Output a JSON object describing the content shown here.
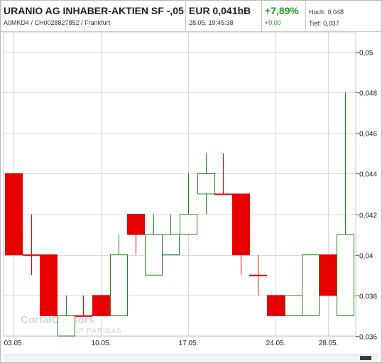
{
  "quote": {
    "name": "URANIO AG INHABER-AKTIEN SF -,05",
    "ids": "A0MKD4 / CH0028827852 / Frankfurt",
    "price": "EUR 0,041bB",
    "datetime": "28.05. 19:45:38",
    "change_pct": "+7,89%",
    "change_abs": "+0,00",
    "high_label": "Hoch:",
    "high_value": "0,048",
    "low_label": "Tief:",
    "low_value": "0,037"
  },
  "watermark": {
    "line1": "CortalConsors",
    "line2": "BNP PARIBAS"
  },
  "colors": {
    "up": "#1a8a1a",
    "down": "#e60000",
    "grid": "#d9d9d9",
    "change_positive": "#1a9a1a"
  },
  "chart_data": {
    "type": "candlestick",
    "title": "",
    "xlabel": "",
    "ylabel": "",
    "ylim": [
      0.036,
      0.05
    ],
    "ytick_values": [
      0.036,
      0.038,
      0.04,
      0.042,
      0.044,
      0.046,
      0.048,
      0.05
    ],
    "yticks": [
      "0,036",
      "0,038",
      "0,04",
      "0,042",
      "0,044",
      "0,046",
      "0,048",
      "0,05"
    ],
    "grid": true,
    "xticks": [
      {
        "index": 0,
        "label": "03.05."
      },
      {
        "index": 5,
        "label": "10.05."
      },
      {
        "index": 10,
        "label": "17.05."
      },
      {
        "index": 15,
        "label": "24.05."
      },
      {
        "index": 18,
        "label": "28.05."
      }
    ],
    "candles": [
      {
        "o": 0.044,
        "h": 0.044,
        "l": 0.04,
        "c": 0.04
      },
      {
        "o": 0.04,
        "h": 0.042,
        "l": 0.039,
        "c": 0.04
      },
      {
        "o": 0.04,
        "h": 0.04,
        "l": 0.037,
        "c": 0.037
      },
      {
        "o": 0.036,
        "h": 0.038,
        "l": 0.036,
        "c": 0.037
      },
      {
        "o": 0.037,
        "h": 0.038,
        "l": 0.037,
        "c": 0.037
      },
      {
        "o": 0.038,
        "h": 0.038,
        "l": 0.037,
        "c": 0.037
      },
      {
        "o": 0.037,
        "h": 0.041,
        "l": 0.037,
        "c": 0.04
      },
      {
        "o": 0.042,
        "h": 0.042,
        "l": 0.04,
        "c": 0.041
      },
      {
        "o": 0.039,
        "h": 0.042,
        "l": 0.039,
        "c": 0.041
      },
      {
        "o": 0.04,
        "h": 0.042,
        "l": 0.04,
        "c": 0.041
      },
      {
        "o": 0.041,
        "h": 0.044,
        "l": 0.041,
        "c": 0.042
      },
      {
        "o": 0.043,
        "h": 0.045,
        "l": 0.042,
        "c": 0.044
      },
      {
        "o": 0.043,
        "h": 0.045,
        "l": 0.043,
        "c": 0.043
      },
      {
        "o": 0.043,
        "h": 0.043,
        "l": 0.039,
        "c": 0.04
      },
      {
        "o": 0.039,
        "h": 0.04,
        "l": 0.038,
        "c": 0.039
      },
      {
        "o": 0.038,
        "h": 0.038,
        "l": 0.037,
        "c": 0.037
      },
      {
        "o": 0.037,
        "h": 0.038,
        "l": 0.037,
        "c": 0.038
      },
      {
        "o": 0.037,
        "h": 0.04,
        "l": 0.037,
        "c": 0.04
      },
      {
        "o": 0.04,
        "h": 0.04,
        "l": 0.038,
        "c": 0.038
      },
      {
        "o": 0.037,
        "h": 0.048,
        "l": 0.037,
        "c": 0.041
      }
    ]
  }
}
